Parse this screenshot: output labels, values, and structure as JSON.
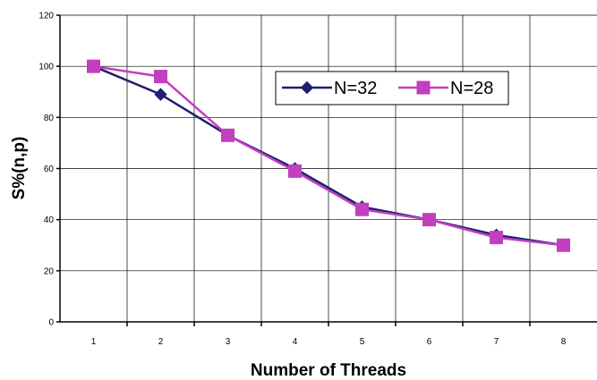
{
  "chart_data": {
    "type": "line",
    "title": "",
    "xlabel": "Number of Threads",
    "ylabel": "S%(n,p)",
    "x": [
      1,
      2,
      3,
      4,
      5,
      6,
      7,
      8
    ],
    "xlim": [
      0.5,
      8.5
    ],
    "ylim": [
      0,
      120
    ],
    "yticks": [
      0,
      20,
      40,
      60,
      80,
      100,
      120
    ],
    "grid": true,
    "legend_position": "top-right",
    "series": [
      {
        "name": "N=32",
        "values": [
          100,
          89,
          73,
          60,
          45,
          40,
          34,
          30
        ],
        "color": "#1f1f6e",
        "marker": "diamond"
      },
      {
        "name": "N=28",
        "values": [
          100,
          96,
          73,
          59,
          44,
          40,
          33,
          30
        ],
        "color": "#c23fbf",
        "marker": "square"
      }
    ]
  }
}
